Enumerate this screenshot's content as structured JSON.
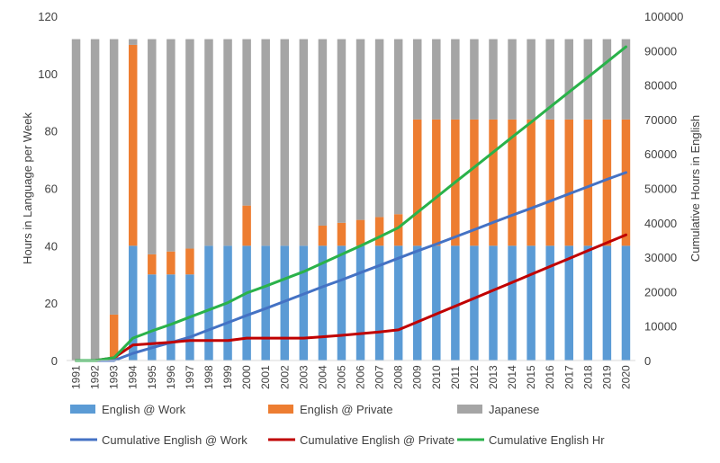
{
  "chart_data": {
    "type": "bar",
    "stacked": true,
    "title": "",
    "ylabel": "Hours in Language per Week",
    "y2label": "Cumulative Hours in English",
    "ylim": [
      0,
      120
    ],
    "y2lim": [
      0,
      100000
    ],
    "yticks": [
      0,
      20,
      40,
      60,
      80,
      100,
      120
    ],
    "y2ticks": [
      0,
      10000,
      20000,
      30000,
      40000,
      50000,
      60000,
      70000,
      80000,
      90000,
      100000
    ],
    "grid": false,
    "legend_position": "bottom",
    "categories": [
      "1991",
      "1992",
      "1993",
      "1994",
      "1995",
      "1996",
      "1997",
      "1998",
      "1999",
      "2000",
      "2001",
      "2002",
      "2003",
      "2004",
      "2005",
      "2006",
      "2007",
      "2008",
      "2009",
      "2010",
      "2011",
      "2012",
      "2013",
      "2014",
      "2015",
      "2016",
      "2017",
      "2018",
      "2019",
      "2020"
    ],
    "bar_series": [
      {
        "name": "English @ Work",
        "color": "#5b9bd5",
        "values": [
          0,
          0,
          0,
          40,
          30,
          30,
          30,
          40,
          40,
          40,
          40,
          40,
          40,
          40,
          40,
          40,
          40,
          40,
          40,
          40,
          40,
          40,
          40,
          40,
          40,
          40,
          40,
          40,
          40,
          40
        ]
      },
      {
        "name": "English @ Private",
        "color": "#ed7d31",
        "values": [
          0,
          0,
          16,
          70,
          7,
          8,
          9,
          0,
          0,
          14,
          0,
          0,
          0,
          7,
          8,
          9,
          10,
          11,
          44,
          44,
          44,
          44,
          44,
          44,
          44,
          44,
          44,
          44,
          44,
          44
        ]
      },
      {
        "name": "Japanese",
        "color": "#a5a5a5",
        "values": [
          112,
          112,
          96,
          2,
          75,
          74,
          73,
          72,
          72,
          58,
          72,
          72,
          72,
          65,
          64,
          63,
          62,
          61,
          28,
          28,
          28,
          28,
          28,
          28,
          28,
          28,
          28,
          28,
          28,
          28
        ]
      }
    ],
    "line_series": [
      {
        "name": "Cumulative English @ Work",
        "color": "#4472c4",
        "axis": "right",
        "values": [
          0,
          0,
          0,
          2100,
          3700,
          5200,
          6800,
          8900,
          11000,
          13100,
          15100,
          17200,
          19300,
          21400,
          23400,
          25500,
          27600,
          29700,
          31800,
          33800,
          35900,
          38000,
          40100,
          42200,
          44200,
          46300,
          48400,
          50500,
          52600,
          54600
        ]
      },
      {
        "name": "Cumulative English @ Private",
        "color": "#c00000",
        "axis": "right",
        "values": [
          0,
          0,
          800,
          4500,
          4900,
          5300,
          5800,
          5800,
          5800,
          6500,
          6500,
          6500,
          6500,
          6900,
          7300,
          7800,
          8300,
          8900,
          11200,
          13500,
          15800,
          18100,
          20400,
          22700,
          25000,
          27300,
          29600,
          31900,
          34200,
          36500
        ]
      },
      {
        "name": "Cumulative English Hr",
        "color": "#2ab24a",
        "axis": "right",
        "values": [
          0,
          0,
          800,
          6500,
          8600,
          10500,
          12600,
          14700,
          16800,
          19600,
          21600,
          23700,
          25800,
          28300,
          30800,
          33300,
          35900,
          38600,
          43000,
          47400,
          51800,
          56100,
          60500,
          64900,
          69200,
          73600,
          78000,
          82300,
          86700,
          91100
        ]
      }
    ]
  }
}
